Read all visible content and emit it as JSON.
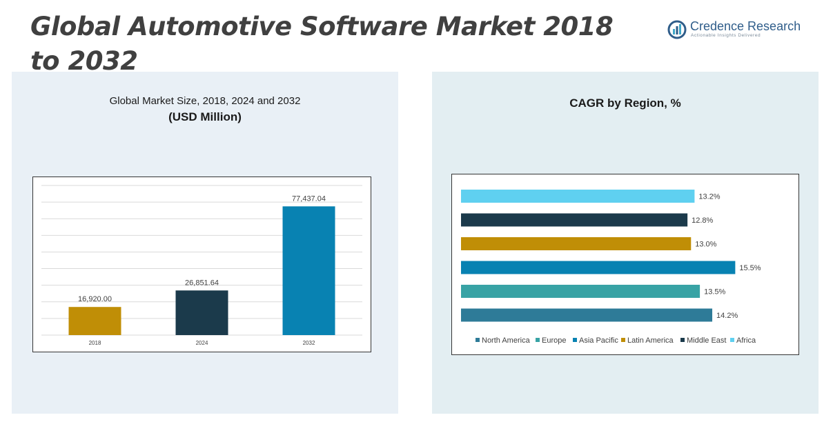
{
  "page": {
    "title": "Global Automotive Software Market 2018 to 2032"
  },
  "brand": {
    "name": "Credence Research",
    "tagline": "Actionable Insights Delivered"
  },
  "left_panel": {
    "title": "Global Market Size, 2018, 2024 and 2032",
    "subtitle": "(USD Million)"
  },
  "right_panel": {
    "title": "CAGR by Region, %"
  },
  "chart_data": [
    {
      "type": "bar",
      "title": "Global Market Size, 2018, 2024 and 2032",
      "subtitle": "(USD Million)",
      "categories": [
        "2018",
        "2024",
        "2032"
      ],
      "values": [
        16920.0,
        26851.64,
        77437.04
      ],
      "value_labels": [
        "16,920.00",
        "26,851.64",
        "77,437.04"
      ],
      "colors": [
        "#c08e06",
        "#1b3a4b",
        "#0882b2"
      ],
      "ylim": [
        0,
        90000
      ],
      "grid": true
    },
    {
      "type": "bar",
      "orientation": "horizontal",
      "title": "CAGR by Region, %",
      "categories": [
        "North America",
        "Europe",
        "Asia Pacific",
        "Latin America",
        "Middle East",
        "Africa"
      ],
      "values": [
        14.2,
        13.5,
        15.5,
        13.0,
        12.8,
        13.2
      ],
      "value_labels": [
        "14.2%",
        "13.5%",
        "15.5%",
        "13.0%",
        "12.8%",
        "13.2%"
      ],
      "colors": [
        "#2e7b98",
        "#38a3a5",
        "#0882b2",
        "#c08e06",
        "#1b3a4b",
        "#5fd0f0"
      ],
      "xlim": [
        0,
        16.5
      ],
      "legend": "bottom"
    }
  ]
}
